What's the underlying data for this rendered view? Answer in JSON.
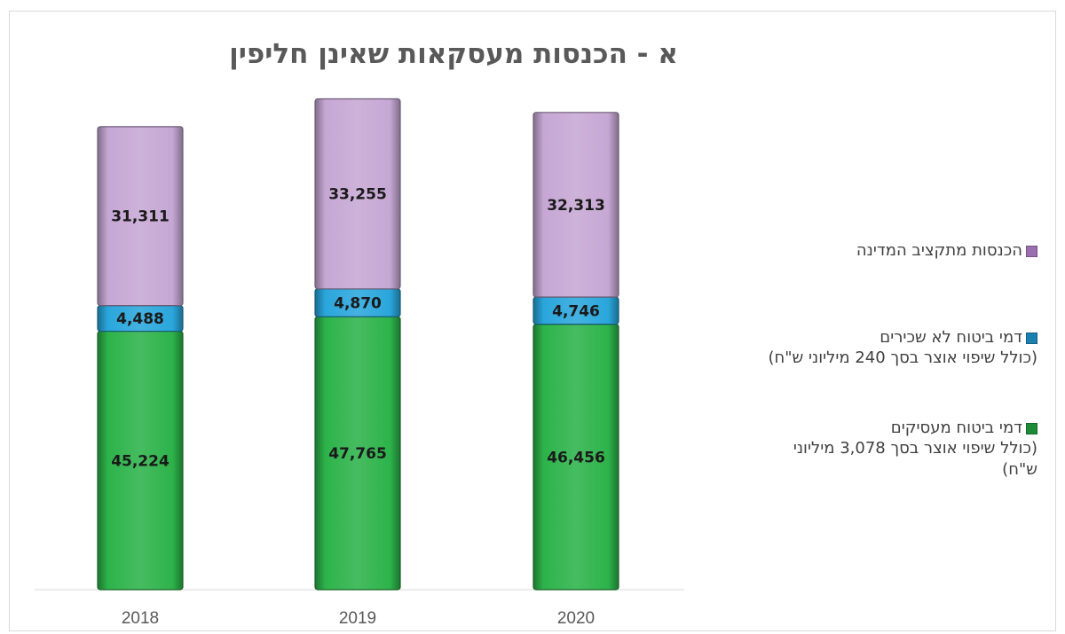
{
  "chart_data": {
    "type": "bar",
    "stacked": true,
    "title": "א - הכנסות מעסקאות שאינן חליפין",
    "categories": [
      "2018",
      "2019",
      "2020"
    ],
    "series": [
      {
        "name": "דמי ביטוח מעסיקים (כולל שיפוי אוצר בסך 3,078 מיליוני ש\"ח)",
        "color": "#2db34a",
        "values": [
          45224,
          47765,
          46456
        ],
        "labels": [
          "45,224",
          "47,765",
          "46,456"
        ]
      },
      {
        "name": "דמי ביטוח לא שכירים (כולל שיפוי אוצר בסך 240 מיליוני ש\"ח)",
        "color": "#2aa6dc",
        "values": [
          4488,
          4870,
          4746
        ],
        "labels": [
          "4,488",
          "4,870",
          "4,746"
        ]
      },
      {
        "name": "הכנסות מתקציב המדינה",
        "color": "#c6a7d4",
        "values": [
          31311,
          33255,
          32313
        ],
        "labels": [
          "31,311",
          "33,255",
          "32,313"
        ]
      }
    ],
    "ylim": [
      0,
      90000
    ],
    "grid": false,
    "legend": "right"
  },
  "legend": {
    "items": [
      {
        "lines": [
          "הכנסות מתקציב המדינה"
        ],
        "color": "#9a6fb0"
      },
      {
        "lines": [
          "דמי ביטוח לא שכירים",
          "(כולל שיפוי אוצר בסך 240 מיליוני ש\"ח)"
        ],
        "color": "#1b7fb0"
      },
      {
        "lines": [
          "דמי ביטוח מעסיקים",
          "(כולל שיפוי אוצר בסך 3,078 מיליוני",
          "ש\"ח)"
        ],
        "color": "#1c8a36"
      }
    ]
  }
}
